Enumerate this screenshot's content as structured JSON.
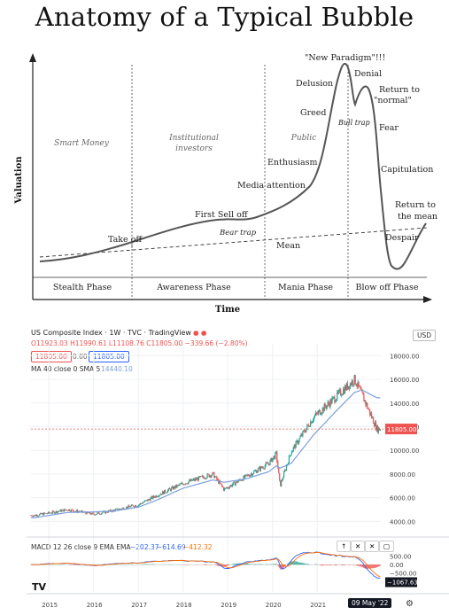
{
  "title": "Anatomy of a Typical Bubble",
  "bubble": {
    "y_axis_label": "Valuation",
    "x_axis_label": "Time",
    "investor_groups": [
      "Smart Money",
      "Institutional investors",
      "Public"
    ],
    "institutional_line1": "Institutional",
    "institutional_line2": "investors",
    "phases": [
      "Stealth Phase",
      "Awareness Phase",
      "Mania Phase",
      "Blow off Phase"
    ],
    "annotations": {
      "take_off": "Take off",
      "first_sell_off": "First Sell off",
      "bear_trap": "Bear trap",
      "media_attention": "Media attention",
      "enthusiasm": "Enthusiasm",
      "greed": "Greed",
      "delusion": "Delusion",
      "new_paradigm": "\"New Paradigm\"!!!",
      "bull_trap": "Bull trap",
      "denial": "Denial",
      "return_normal_1": "Return to",
      "return_normal_2": "\"normal\"",
      "fear": "Fear",
      "capitulation": "Capitulation",
      "return_mean_1": "Return to",
      "return_mean_2": "the mean",
      "despair": "Despair",
      "mean": "Mean"
    }
  },
  "tv": {
    "header": "US Composite Index · 1W · TVC · TradingView",
    "ohlc": "O11923.03 H11990.61 L11108.76 C11805.00 −339.66 (−2.80%)",
    "price_box_1": "11805.00",
    "spread": "0.00",
    "price_box_2": "11805.00",
    "ma_label": "MA 40 close 0 SMA 5",
    "ma_value": "14440.10",
    "currency": "USD",
    "last_price": "11805.00",
    "price_ticks": [
      "18000.00",
      "16000.00",
      "14000.00",
      "12000.00",
      "10000.00",
      "8000.00",
      "6000.00",
      "4000.00"
    ],
    "macd_label": "MACD 12 26 close 9 EMA EMA",
    "macd_values": [
      "−202.37",
      "−614.69",
      "−412.32"
    ],
    "macd_ticks": [
      "500.00",
      "0.00",
      "−500.00"
    ],
    "macd_last": "−1067.63",
    "years": [
      "2015",
      "2016",
      "2017",
      "2018",
      "2019",
      "2020",
      "2021"
    ],
    "date_tag": "09 May '22",
    "logo": "TV",
    "colors": {
      "up": "#26a69a",
      "down": "#ef5350",
      "ma": "#7b9fe0",
      "macd": "#2962ff",
      "signal": "#ff6d00"
    }
  },
  "chart_data": [
    {
      "type": "line",
      "title": "Anatomy of a Typical Bubble",
      "xlabel": "Time",
      "ylabel": "Valuation",
      "x": [
        0,
        5,
        10,
        15,
        20,
        25,
        30,
        35,
        40,
        45,
        50,
        55,
        60,
        62,
        64,
        66,
        68,
        70,
        72,
        74,
        76,
        78,
        80,
        82,
        84,
        86,
        88,
        90,
        92,
        94,
        96,
        98,
        100
      ],
      "series": [
        {
          "values": [
            8,
            9,
            10,
            12,
            15,
            18,
            22,
            26,
            30,
            28,
            32,
            40,
            55,
            70,
            85,
            95,
            88,
            78,
            85,
            75,
            60,
            45,
            25,
            12,
            8,
            10,
            14,
            18,
            20,
            22,
            24,
            25,
            26
          ]
        }
      ],
      "grid": false
    },
    {
      "type": "line",
      "title": "US Composite Index · 1W · TVC",
      "x": [
        "2014-09",
        "2015-01",
        "2015-06",
        "2016-01",
        "2016-06",
        "2017-01",
        "2017-06",
        "2018-01",
        "2018-09",
        "2018-12",
        "2019-06",
        "2019-12",
        "2020-02",
        "2020-03",
        "2020-06",
        "2020-12",
        "2021-06",
        "2021-11",
        "2022-01",
        "2022-05"
      ],
      "series": [
        {
          "name": "close",
          "values": [
            4500,
            4700,
            5000,
            4600,
            4900,
            5400,
            6200,
            7200,
            8000,
            6700,
            7800,
            8900,
            9700,
            7000,
            9900,
            12800,
            14500,
            16000,
            14700,
            11805
          ]
        },
        {
          "name": "MA 40",
          "values": [
            4300,
            4500,
            4750,
            4800,
            4850,
            5200,
            5800,
            6800,
            7500,
            7300,
            7600,
            8200,
            8700,
            8500,
            8900,
            11300,
            13300,
            14900,
            15100,
            14440
          ]
        }
      ],
      "ylim": [
        3500,
        19000
      ]
    }
  ]
}
